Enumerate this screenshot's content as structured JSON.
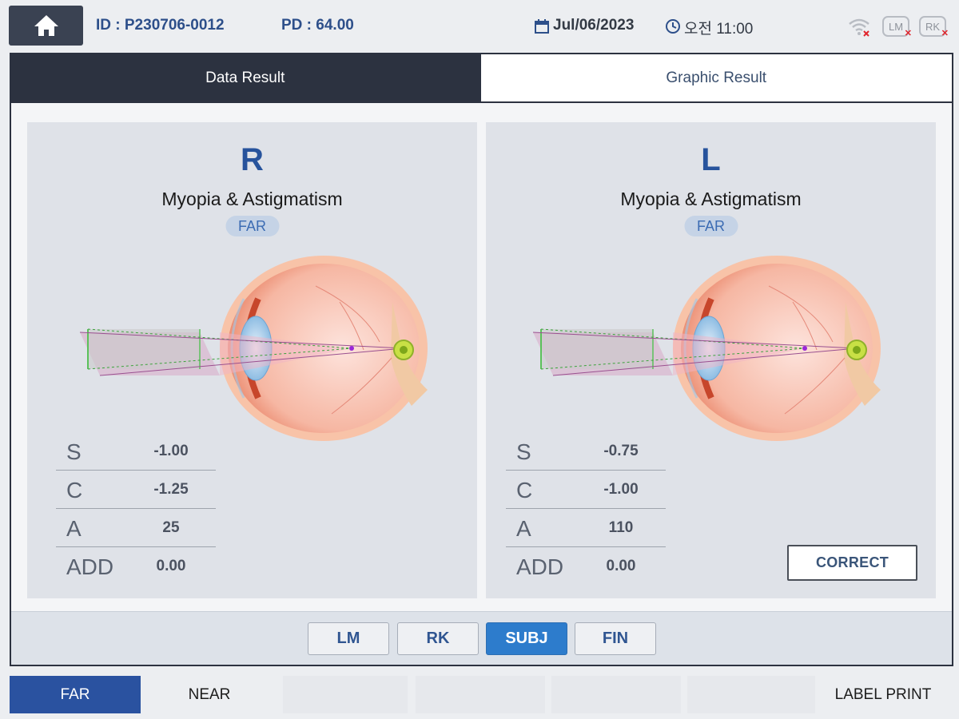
{
  "header": {
    "id_text": "ID : P230706-0012",
    "pd_text": "PD : 64.00",
    "date": "Jul/06/2023",
    "time": "오전 11:00",
    "lm_icon_label": "LM",
    "rk_icon_label": "RK",
    "icons": [
      "home-icon",
      "calendar-icon",
      "clock-icon",
      "wifi-off-icon",
      "lm-disconnected-icon",
      "rk-disconnected-icon"
    ]
  },
  "tabs": [
    {
      "label": "Data Result",
      "active": true
    },
    {
      "label": "Graphic Result",
      "active": false
    }
  ],
  "right_eye": {
    "side": "R",
    "diagnosis": "Myopia & Astigmatism",
    "distance": "FAR",
    "rx": [
      {
        "label": "S",
        "value": "-1.00"
      },
      {
        "label": "C",
        "value": "-1.25"
      },
      {
        "label": "A",
        "value": "25"
      },
      {
        "label": "ADD",
        "value": "0.00"
      }
    ]
  },
  "left_eye": {
    "side": "L",
    "diagnosis": "Myopia & Astigmatism",
    "distance": "FAR",
    "rx": [
      {
        "label": "S",
        "value": "-0.75"
      },
      {
        "label": "C",
        "value": "-1.00"
      },
      {
        "label": "A",
        "value": "110"
      },
      {
        "label": "ADD",
        "value": "0.00"
      }
    ]
  },
  "correct_button": "CORRECT",
  "mode_buttons": [
    {
      "label": "LM",
      "active": false
    },
    {
      "label": "RK",
      "active": false
    },
    {
      "label": "SUBJ",
      "active": true
    },
    {
      "label": "FIN",
      "active": false
    }
  ],
  "bottom_buttons": [
    {
      "label": "FAR",
      "active": true
    },
    {
      "label": "NEAR",
      "active": false
    },
    {
      "label": "",
      "active": false
    },
    {
      "label": "",
      "active": false
    },
    {
      "label": "",
      "active": false
    },
    {
      "label": "",
      "active": false
    },
    {
      "label": "LABEL PRINT",
      "active": false
    }
  ],
  "colors": {
    "accent_blue": "#2d7ccc",
    "dark_navy": "#2c3240",
    "far_active": "#2a52a0",
    "title_blue": "#27539c"
  }
}
